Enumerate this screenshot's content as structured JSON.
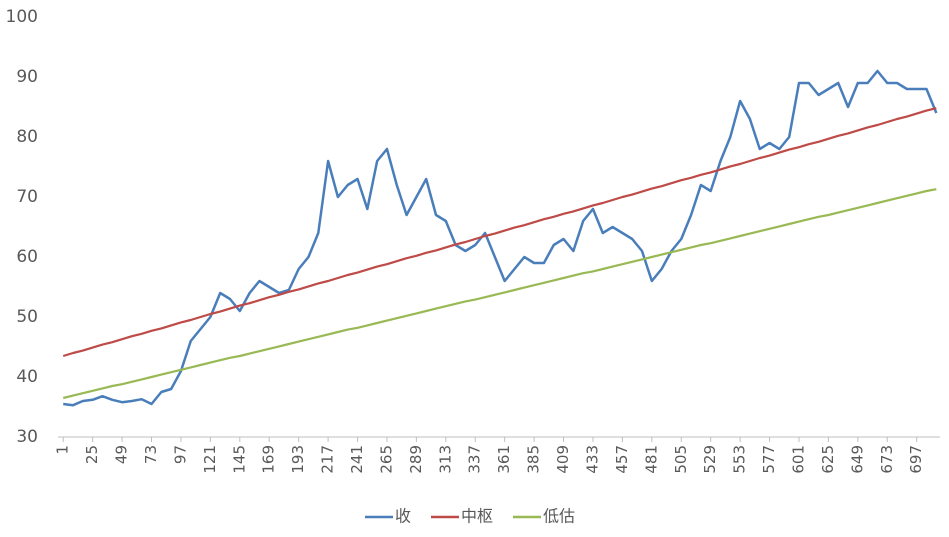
{
  "chart_data": {
    "type": "line",
    "x": [
      1,
      9,
      17,
      25,
      33,
      41,
      49,
      57,
      65,
      73,
      81,
      89,
      97,
      105,
      113,
      121,
      129,
      137,
      145,
      153,
      161,
      169,
      177,
      185,
      193,
      201,
      209,
      217,
      225,
      233,
      241,
      249,
      257,
      265,
      273,
      281,
      289,
      297,
      305,
      313,
      321,
      329,
      337,
      345,
      353,
      361,
      369,
      377,
      385,
      393,
      401,
      409,
      417,
      425,
      433,
      441,
      449,
      457,
      465,
      473,
      481,
      489,
      497,
      505,
      513,
      521,
      529,
      537,
      545,
      553,
      561,
      569,
      577,
      585,
      593,
      601,
      609,
      617,
      625,
      633,
      641,
      649,
      657,
      665,
      673,
      681,
      689,
      697,
      705,
      713
    ],
    "series": [
      {
        "name": "收",
        "color": "#4a7ebb",
        "values": [
          35.5,
          35.3,
          36,
          36.2,
          36.8,
          36.2,
          35.8,
          36,
          36.3,
          35.5,
          37.5,
          38,
          41,
          46,
          48,
          50,
          54,
          53,
          51,
          54,
          56,
          55,
          54,
          54.5,
          58,
          60,
          64,
          76,
          70,
          72,
          73,
          68,
          76,
          78,
          72,
          67,
          70,
          73,
          67,
          66,
          62,
          61,
          62,
          64,
          60,
          56,
          58,
          60,
          59,
          59,
          62,
          63,
          61,
          66,
          68,
          64,
          65,
          64,
          63,
          61,
          56,
          58,
          61,
          63,
          67,
          72,
          71,
          76,
          80,
          86,
          83,
          78,
          79,
          78,
          80,
          89,
          89,
          87,
          88,
          89,
          85,
          89,
          89,
          91,
          89,
          89,
          88,
          88,
          88,
          84
        ]
      },
      {
        "name": "中枢",
        "color": "#be4b48",
        "values": [
          43.5,
          44.0,
          44.4,
          44.9,
          45.4,
          45.8,
          46.3,
          46.8,
          47.2,
          47.7,
          48.1,
          48.6,
          49.1,
          49.5,
          50.0,
          50.5,
          50.9,
          51.4,
          51.9,
          52.3,
          52.8,
          53.3,
          53.7,
          54.2,
          54.6,
          55.1,
          55.6,
          56.0,
          56.5,
          57.0,
          57.4,
          57.9,
          58.4,
          58.8,
          59.3,
          59.8,
          60.2,
          60.7,
          61.1,
          61.6,
          62.1,
          62.5,
          63.0,
          63.5,
          63.9,
          64.4,
          64.9,
          65.3,
          65.8,
          66.3,
          66.7,
          67.2,
          67.6,
          68.1,
          68.6,
          69.0,
          69.5,
          70.0,
          70.4,
          70.9,
          71.4,
          71.8,
          72.3,
          72.8,
          73.2,
          73.7,
          74.1,
          74.6,
          75.1,
          75.5,
          76.0,
          76.5,
          76.9,
          77.4,
          77.9,
          78.3,
          78.8,
          79.2,
          79.7,
          80.2,
          80.6,
          81.1,
          81.6,
          82.0,
          82.5,
          83.0,
          83.4,
          83.9,
          84.4,
          84.8
        ]
      },
      {
        "name": "低估",
        "color": "#98b954",
        "values": [
          36.5,
          36.9,
          37.3,
          37.7,
          38.1,
          38.5,
          38.8,
          39.2,
          39.6,
          40.0,
          40.4,
          40.8,
          41.2,
          41.6,
          42.0,
          42.4,
          42.8,
          43.2,
          43.5,
          43.9,
          44.3,
          44.7,
          45.1,
          45.5,
          45.9,
          46.3,
          46.7,
          47.1,
          47.5,
          47.9,
          48.2,
          48.6,
          49.0,
          49.4,
          49.8,
          50.2,
          50.6,
          51.0,
          51.4,
          51.8,
          52.2,
          52.6,
          52.9,
          53.3,
          53.7,
          54.1,
          54.5,
          54.9,
          55.3,
          55.7,
          56.1,
          56.5,
          56.9,
          57.3,
          57.6,
          58.0,
          58.4,
          58.8,
          59.2,
          59.6,
          60.0,
          60.4,
          60.8,
          61.2,
          61.6,
          62.0,
          62.3,
          62.7,
          63.1,
          63.5,
          63.9,
          64.3,
          64.7,
          65.1,
          65.5,
          65.9,
          66.3,
          66.7,
          67.0,
          67.4,
          67.8,
          68.2,
          68.6,
          69.0,
          69.4,
          69.8,
          70.2,
          70.6,
          71.0,
          71.3
        ]
      }
    ],
    "xlim": [
      0,
      716
    ],
    "xticks": [
      1,
      25,
      49,
      73,
      97,
      121,
      145,
      169,
      193,
      217,
      241,
      265,
      289,
      313,
      337,
      361,
      385,
      409,
      433,
      457,
      481,
      505,
      529,
      553,
      577,
      601,
      625,
      649,
      673,
      697
    ],
    "ylim": [
      30,
      100
    ],
    "yticks": [
      30,
      40,
      50,
      60,
      70,
      80,
      90,
      100
    ],
    "grid": false,
    "legend": "bottom"
  }
}
